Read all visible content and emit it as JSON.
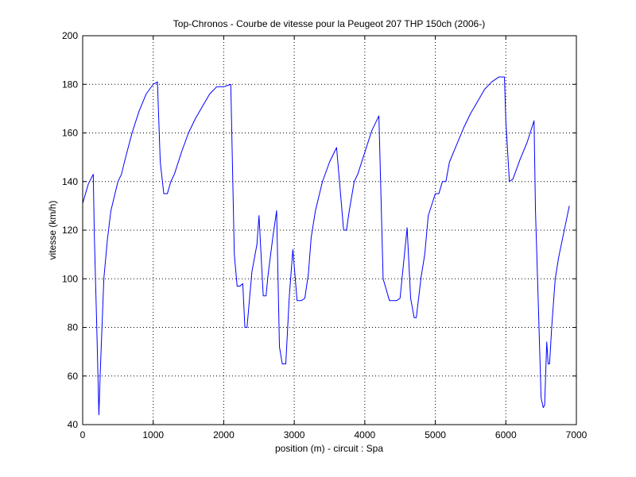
{
  "chart_data": {
    "type": "line",
    "title": "Top-Chronos - Courbe de vitesse pour la Peugeot 207 THP 150ch (2006-)",
    "xlabel": "position (m) - circuit : Spa",
    "ylabel": "vitesse (km/h)",
    "xlim": [
      0,
      7000
    ],
    "ylim": [
      40,
      200
    ],
    "x_ticks": [
      0,
      1000,
      2000,
      3000,
      4000,
      5000,
      6000,
      7000
    ],
    "y_ticks": [
      40,
      60,
      80,
      100,
      120,
      140,
      160,
      180,
      200
    ],
    "grid": true,
    "line_color": "#0000ff",
    "series": [
      {
        "x": [
          0,
          80,
          150,
          165,
          200,
          230,
          250,
          300,
          350,
          400,
          500,
          550,
          600,
          700,
          800,
          900,
          1000,
          1060,
          1100,
          1150,
          1200,
          1250,
          1300,
          1400,
          1500,
          1600,
          1700,
          1800,
          1900,
          2000,
          2100,
          2150,
          2190,
          2230,
          2270,
          2300,
          2330,
          2400,
          2470,
          2500,
          2560,
          2600,
          2630,
          2700,
          2750,
          2790,
          2830,
          2880,
          2930,
          2980,
          3040,
          3080,
          3100,
          3150,
          3200,
          3240,
          3300,
          3400,
          3500,
          3600,
          3700,
          3740,
          3780,
          3850,
          3900,
          4000,
          4100,
          4200,
          4260,
          4300,
          4350,
          4450,
          4500,
          4600,
          4650,
          4700,
          4730,
          4800,
          4850,
          4900,
          5000,
          5050,
          5100,
          5150,
          5200,
          5300,
          5400,
          5500,
          5600,
          5700,
          5800,
          5900,
          5980,
          6000,
          6050,
          6100,
          6200,
          6300,
          6400,
          6420,
          6460,
          6500,
          6530,
          6550,
          6580,
          6600,
          6620,
          6650,
          6700,
          6750,
          6850,
          6900
        ],
        "y": [
          131,
          139,
          143,
          118,
          80,
          44,
          62,
          100,
          116,
          128,
          140,
          143,
          149,
          160,
          169,
          176,
          180,
          181,
          148,
          135,
          135,
          140,
          143,
          152,
          160,
          166,
          171,
          176,
          179,
          179,
          180,
          110,
          97,
          97,
          98,
          80,
          80,
          103,
          114,
          126,
          93,
          93,
          102,
          118,
          128,
          72,
          65,
          65,
          93,
          112,
          91,
          91,
          91,
          92,
          102,
          117,
          128,
          140,
          148,
          154,
          120,
          120,
          128,
          140,
          143,
          152,
          161,
          167,
          100,
          96,
          91,
          91,
          92,
          121,
          92,
          84,
          84,
          101,
          110,
          126,
          135,
          135,
          140,
          140,
          148,
          155,
          162,
          168,
          173,
          178,
          181,
          183,
          183,
          165,
          140,
          141,
          149,
          156,
          165,
          128,
          90,
          51,
          47,
          48,
          74,
          65,
          65,
          80,
          100,
          109,
          123,
          130
        ]
      }
    ]
  }
}
